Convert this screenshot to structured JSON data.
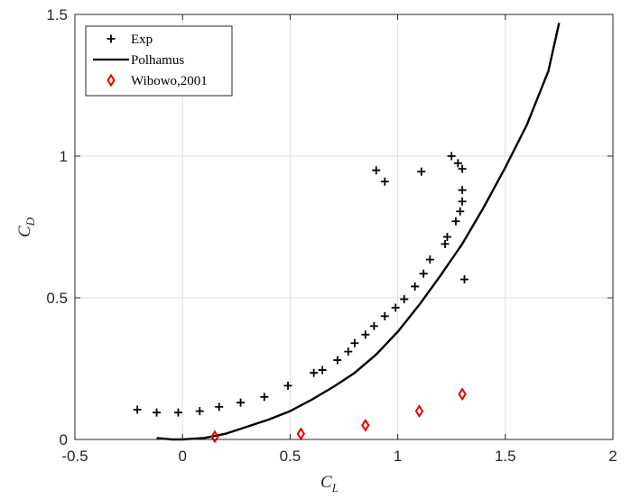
{
  "chart_data": {
    "type": "scatter",
    "xlabel": {
      "main": "C",
      "sub": "L"
    },
    "ylabel": {
      "main": "C",
      "sub": "D"
    },
    "xlim": [
      -0.5,
      2
    ],
    "ylim": [
      0,
      1.5
    ],
    "xticks": [
      -0.5,
      0,
      0.5,
      1,
      1.5,
      2
    ],
    "xtick_labels": [
      "-0.5",
      "0",
      "0.5",
      "1",
      "1.5",
      "2"
    ],
    "yticks": [
      0,
      0.5,
      1,
      1.5
    ],
    "ytick_labels": [
      "0",
      "0.5",
      "1",
      "1.5"
    ],
    "grid": true,
    "legend_position": "top-left",
    "series": [
      {
        "name": "Exp",
        "marker": "plus",
        "color": "#000000",
        "points": [
          [
            -0.21,
            0.105
          ],
          [
            -0.12,
            0.095
          ],
          [
            -0.02,
            0.095
          ],
          [
            0.08,
            0.1
          ],
          [
            0.17,
            0.115
          ],
          [
            0.27,
            0.13
          ],
          [
            0.38,
            0.15
          ],
          [
            0.49,
            0.19
          ],
          [
            0.61,
            0.235
          ],
          [
            0.65,
            0.245
          ],
          [
            0.72,
            0.28
          ],
          [
            0.77,
            0.31
          ],
          [
            0.8,
            0.34
          ],
          [
            0.85,
            0.37
          ],
          [
            0.89,
            0.4
          ],
          [
            0.94,
            0.435
          ],
          [
            0.99,
            0.465
          ],
          [
            1.03,
            0.495
          ],
          [
            1.08,
            0.54
          ],
          [
            1.12,
            0.585
          ],
          [
            1.15,
            0.635
          ],
          [
            1.22,
            0.69
          ],
          [
            1.23,
            0.715
          ],
          [
            1.27,
            0.77
          ],
          [
            1.29,
            0.805
          ],
          [
            1.3,
            0.84
          ],
          [
            1.3,
            0.88
          ],
          [
            1.31,
            0.565
          ],
          [
            1.3,
            0.955
          ],
          [
            1.28,
            0.975
          ],
          [
            1.25,
            1.0
          ],
          [
            1.11,
            0.945
          ],
          [
            0.9,
            0.95
          ],
          [
            0.94,
            0.91
          ]
        ]
      },
      {
        "name": "Polhamus",
        "marker": "line",
        "color": "#000000",
        "points": [
          [
            -0.12,
            0.005
          ],
          [
            -0.05,
            0.0
          ],
          [
            0.0,
            0.0
          ],
          [
            0.1,
            0.005
          ],
          [
            0.2,
            0.02
          ],
          [
            0.3,
            0.045
          ],
          [
            0.4,
            0.07
          ],
          [
            0.5,
            0.1
          ],
          [
            0.6,
            0.14
          ],
          [
            0.7,
            0.185
          ],
          [
            0.8,
            0.235
          ],
          [
            0.9,
            0.3
          ],
          [
            1.0,
            0.38
          ],
          [
            1.1,
            0.475
          ],
          [
            1.2,
            0.58
          ],
          [
            1.3,
            0.69
          ],
          [
            1.4,
            0.82
          ],
          [
            1.5,
            0.96
          ],
          [
            1.6,
            1.11
          ],
          [
            1.7,
            1.3
          ],
          [
            1.75,
            1.47
          ]
        ]
      },
      {
        "name": "Wibowo,2001",
        "marker": "diamond",
        "color": "#e60000",
        "points": [
          [
            0.15,
            0.01
          ],
          [
            0.55,
            0.02
          ],
          [
            0.85,
            0.05
          ],
          [
            1.1,
            0.1
          ],
          [
            1.3,
            0.16
          ]
        ]
      }
    ]
  }
}
